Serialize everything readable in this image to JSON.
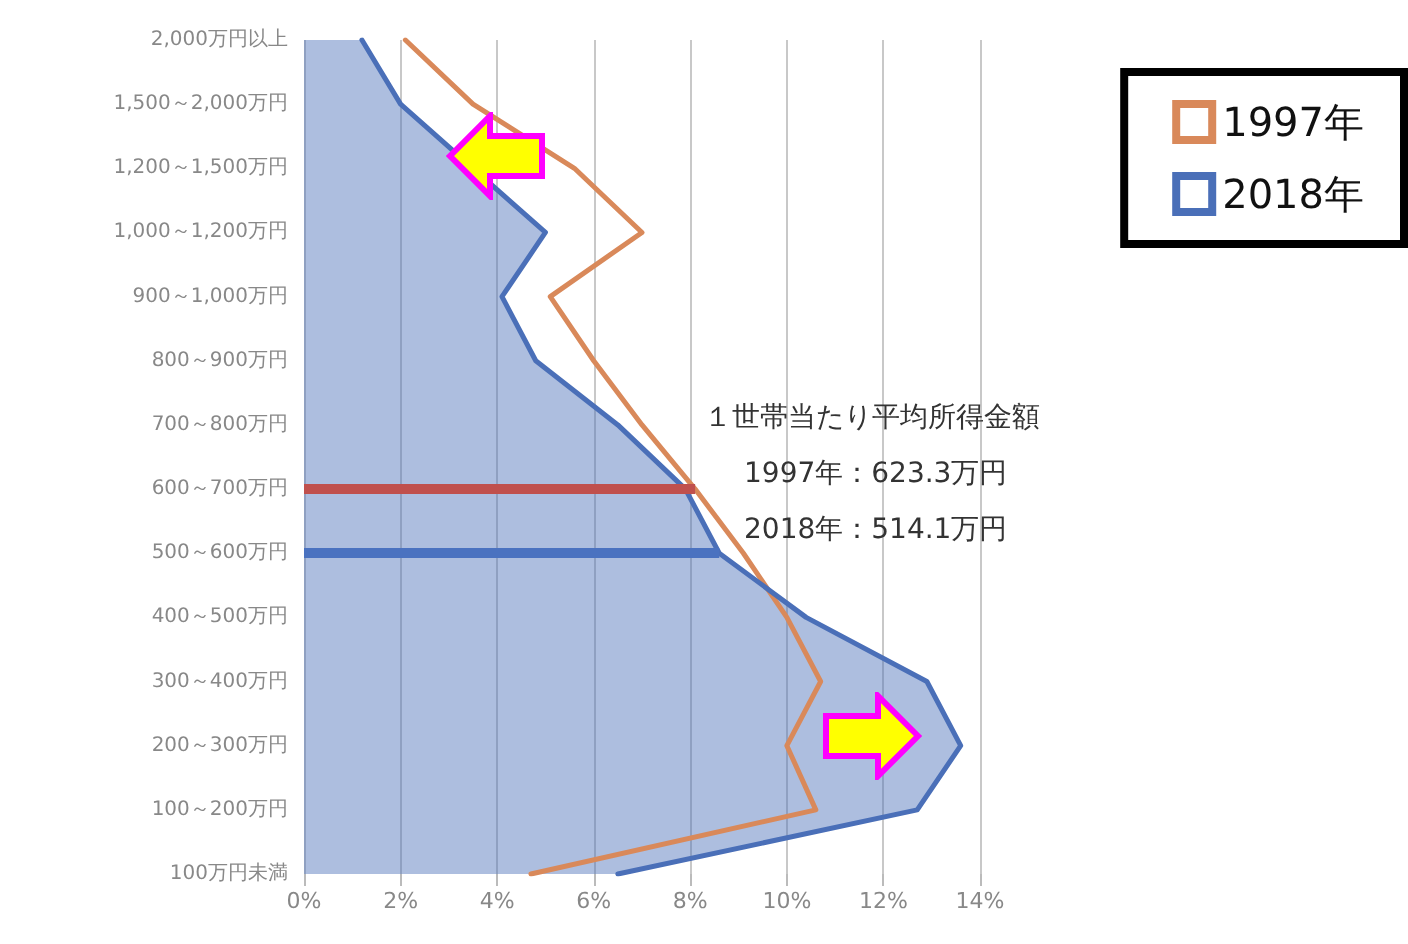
{
  "chart_data": {
    "type": "line",
    "orientation": "horizontal",
    "categories": [
      "2,000万円以上",
      "1,500～2,000万円",
      "1,200～1,500万円",
      "1,000～1,200万円",
      "900～1,000万円",
      "800～900万円",
      "700～800万円",
      "600～700万円",
      "500～600万円",
      "400～500万円",
      "300～400万円",
      "200～300万円",
      "100～200万円",
      "100万円未満"
    ],
    "series": [
      {
        "name": "1997年",
        "color": "#d9895a",
        "values": [
          2.1,
          3.5,
          5.6,
          7.0,
          5.1,
          6.0,
          7.0,
          8.1,
          9.1,
          10.0,
          10.7,
          10.0,
          10.6,
          4.7
        ]
      },
      {
        "name": "2018年",
        "type": "area",
        "color": "#4a6fb8",
        "values": [
          1.2,
          2.0,
          null,
          5.0,
          4.1,
          4.8,
          6.5,
          7.9,
          8.6,
          10.4,
          12.9,
          13.6,
          12.7,
          6.5
        ]
      }
    ],
    "xlim": [
      0,
      14
    ],
    "xticks": [
      {
        "value": 0,
        "label": "0%"
      },
      {
        "value": 2,
        "label": "2%"
      },
      {
        "value": 4,
        "label": "4%"
      },
      {
        "value": 6,
        "label": "6%"
      },
      {
        "value": 8,
        "label": "8%"
      },
      {
        "value": 10,
        "label": "10%"
      },
      {
        "value": 12,
        "label": "12%"
      },
      {
        "value": 14,
        "label": "14%"
      }
    ],
    "ref_lines": [
      {
        "axis": "y",
        "value": "600～700万円",
        "color": "#c0504d"
      },
      {
        "axis": "y",
        "value": "500～600万円",
        "color": "#4a72c0"
      }
    ],
    "annotations": [
      "１世帯当たり平均所得金額",
      "1997年：623.3万円",
      "2018年：514.1万円"
    ],
    "grid": "x",
    "legend": "top right",
    "marker": "none",
    "line_style": "solid"
  }
}
